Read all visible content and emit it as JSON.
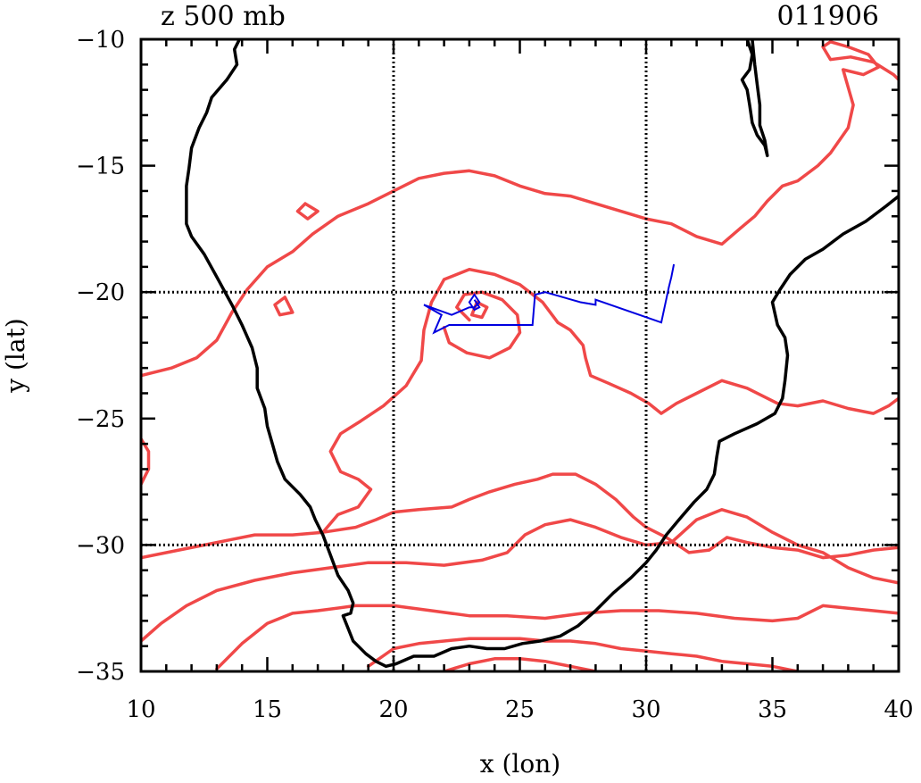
{
  "title_left": "z 500 mb",
  "title_right": "011906",
  "chart_data": {
    "type": "line",
    "xlabel": "x (lon)",
    "ylabel": "y (lat)",
    "xlim": [
      10,
      40
    ],
    "ylim": [
      -35,
      -10
    ],
    "xticks": [
      10,
      15,
      20,
      25,
      30,
      35,
      40
    ],
    "yticks": [
      -10,
      -15,
      -20,
      -25,
      -30,
      -35
    ],
    "xtick_labels": [
      "10",
      "15",
      "20",
      "25",
      "30",
      "35",
      "40"
    ],
    "ytick_labels": [
      "−10",
      "−15",
      "−20",
      "−25",
      "−30",
      "−35"
    ],
    "gridlines_x": [
      20,
      30
    ],
    "gridlines_y": [
      -20,
      -30
    ],
    "grid_style": "dotted",
    "colors": {
      "coast": "#000000",
      "contour": "#f04848",
      "track": "#0000e0",
      "grid": "#000000"
    },
    "coastline": [
      [
        [
          13.9,
          -10.0
        ],
        [
          13.7,
          -10.4
        ],
        [
          13.8,
          -11.0
        ],
        [
          13.4,
          -11.6
        ],
        [
          12.8,
          -12.3
        ],
        [
          12.6,
          -12.9
        ],
        [
          12.3,
          -13.5
        ],
        [
          12.0,
          -14.3
        ],
        [
          11.9,
          -15.1
        ],
        [
          11.8,
          -15.8
        ],
        [
          11.8,
          -16.6
        ],
        [
          11.8,
          -17.3
        ],
        [
          12.0,
          -17.8
        ],
        [
          12.5,
          -18.5
        ],
        [
          13.0,
          -19.4
        ],
        [
          13.6,
          -20.5
        ],
        [
          14.0,
          -21.3
        ],
        [
          14.4,
          -22.2
        ],
        [
          14.6,
          -23.0
        ],
        [
          14.6,
          -23.8
        ],
        [
          14.9,
          -24.6
        ],
        [
          15.0,
          -25.3
        ],
        [
          15.2,
          -26.0
        ],
        [
          15.4,
          -26.7
        ],
        [
          15.7,
          -27.4
        ],
        [
          16.3,
          -28.0
        ],
        [
          16.7,
          -28.5
        ],
        [
          16.9,
          -29.0
        ],
        [
          17.2,
          -29.6
        ],
        [
          17.5,
          -30.4
        ],
        [
          17.8,
          -31.2
        ],
        [
          18.2,
          -31.8
        ],
        [
          18.4,
          -32.3
        ],
        [
          18.3,
          -32.7
        ],
        [
          18.0,
          -32.8
        ],
        [
          18.2,
          -33.3
        ],
        [
          18.4,
          -33.8
        ],
        [
          18.6,
          -34.0
        ],
        [
          18.9,
          -34.3
        ],
        [
          19.3,
          -34.6
        ],
        [
          19.7,
          -34.8
        ],
        [
          20.1,
          -34.7
        ],
        [
          20.8,
          -34.4
        ],
        [
          21.6,
          -34.4
        ],
        [
          22.3,
          -34.1
        ],
        [
          23.0,
          -34.0
        ],
        [
          23.7,
          -34.1
        ],
        [
          24.4,
          -34.1
        ],
        [
          25.1,
          -33.9
        ],
        [
          25.8,
          -33.8
        ],
        [
          26.6,
          -33.6
        ],
        [
          27.3,
          -33.2
        ],
        [
          28.0,
          -32.6
        ],
        [
          28.7,
          -31.9
        ],
        [
          29.4,
          -31.3
        ],
        [
          30.0,
          -30.7
        ],
        [
          30.4,
          -30.2
        ],
        [
          30.8,
          -29.6
        ],
        [
          31.3,
          -29.0
        ],
        [
          31.9,
          -28.3
        ],
        [
          32.4,
          -27.8
        ],
        [
          32.7,
          -27.2
        ],
        [
          32.8,
          -26.5
        ],
        [
          32.9,
          -25.9
        ],
        [
          33.5,
          -25.6
        ],
        [
          34.4,
          -25.2
        ],
        [
          35.1,
          -24.8
        ],
        [
          35.4,
          -24.2
        ],
        [
          35.5,
          -23.5
        ],
        [
          35.6,
          -22.5
        ],
        [
          35.5,
          -21.8
        ],
        [
          35.2,
          -21.3
        ],
        [
          35.0,
          -20.4
        ],
        [
          35.3,
          -19.9
        ],
        [
          35.7,
          -19.3
        ],
        [
          36.3,
          -18.7
        ],
        [
          37.0,
          -18.3
        ],
        [
          37.8,
          -17.7
        ],
        [
          38.7,
          -17.2
        ],
        [
          39.5,
          -16.6
        ],
        [
          40.0,
          -16.2
        ]
      ],
      [
        [
          34.0,
          -10.0
        ],
        [
          34.2,
          -10.6
        ],
        [
          34.1,
          -11.2
        ],
        [
          33.8,
          -11.6
        ],
        [
          34.0,
          -12.0
        ],
        [
          34.1,
          -12.6
        ],
        [
          34.2,
          -13.3
        ],
        [
          34.4,
          -13.8
        ],
        [
          34.7,
          -14.2
        ],
        [
          34.8,
          -14.6
        ],
        [
          34.7,
          -14.0
        ],
        [
          34.5,
          -13.4
        ],
        [
          34.5,
          -12.6
        ],
        [
          34.4,
          -11.8
        ],
        [
          34.3,
          -11.0
        ],
        [
          34.2,
          -10.0
        ]
      ]
    ],
    "contours": [
      [
        [
          10.0,
          -23.3
        ],
        [
          11.2,
          -23.0
        ],
        [
          12.2,
          -22.6
        ],
        [
          13.0,
          -21.9
        ],
        [
          13.6,
          -20.8
        ],
        [
          14.2,
          -19.9
        ],
        [
          15.0,
          -19.0
        ],
        [
          16.0,
          -18.4
        ],
        [
          16.8,
          -17.7
        ],
        [
          17.8,
          -17.0
        ],
        [
          19.0,
          -16.5
        ],
        [
          20.0,
          -16.0
        ],
        [
          21.0,
          -15.5
        ],
        [
          22.0,
          -15.3
        ],
        [
          23.0,
          -15.2
        ],
        [
          24.0,
          -15.4
        ],
        [
          25.0,
          -15.8
        ],
        [
          26.0,
          -16.1
        ],
        [
          27.0,
          -16.2
        ],
        [
          28.0,
          -16.5
        ],
        [
          29.0,
          -16.8
        ],
        [
          30.0,
          -17.1
        ],
        [
          31.0,
          -17.3
        ],
        [
          32.0,
          -17.8
        ],
        [
          33.0,
          -18.1
        ],
        [
          33.7,
          -17.5
        ],
        [
          34.3,
          -17.0
        ],
        [
          34.8,
          -16.4
        ],
        [
          35.4,
          -15.8
        ],
        [
          36.0,
          -15.6
        ],
        [
          36.8,
          -15.0
        ],
        [
          37.3,
          -14.5
        ],
        [
          38.0,
          -13.5
        ],
        [
          38.2,
          -12.6
        ],
        [
          38.0,
          -11.9
        ],
        [
          37.8,
          -11.2
        ],
        [
          38.6,
          -11.4
        ],
        [
          39.2,
          -11.1
        ],
        [
          38.8,
          -10.6
        ],
        [
          38.0,
          -10.3
        ],
        [
          37.3,
          -10.1
        ],
        [
          37.0,
          -10.3
        ],
        [
          37.3,
          -10.8
        ],
        [
          38.1,
          -10.7
        ],
        [
          39.0,
          -10.9
        ],
        [
          39.8,
          -11.4
        ],
        [
          40.0,
          -11.6
        ]
      ],
      [
        [
          16.5,
          -16.5
        ],
        [
          17.0,
          -16.8
        ],
        [
          16.6,
          -17.1
        ],
        [
          16.2,
          -16.8
        ],
        [
          16.5,
          -16.5
        ]
      ],
      [
        [
          15.7,
          -20.2
        ],
        [
          16.0,
          -20.8
        ],
        [
          15.5,
          -20.9
        ],
        [
          15.3,
          -20.5
        ],
        [
          15.7,
          -20.2
        ]
      ],
      [
        [
          10.0,
          -25.8
        ],
        [
          10.3,
          -26.3
        ],
        [
          10.3,
          -27.0
        ],
        [
          10.0,
          -27.6
        ]
      ],
      [
        [
          17.2,
          -29.5
        ],
        [
          17.8,
          -28.8
        ],
        [
          18.6,
          -28.5
        ],
        [
          19.1,
          -27.8
        ],
        [
          18.6,
          -27.4
        ],
        [
          17.9,
          -27.1
        ],
        [
          17.5,
          -26.3
        ],
        [
          17.9,
          -25.6
        ],
        [
          18.7,
          -25.1
        ],
        [
          19.6,
          -24.5
        ],
        [
          20.5,
          -23.7
        ],
        [
          21.1,
          -22.7
        ],
        [
          21.2,
          -21.5
        ],
        [
          21.5,
          -20.4
        ],
        [
          22.0,
          -19.5
        ],
        [
          23.0,
          -19.1
        ],
        [
          24.0,
          -19.3
        ],
        [
          25.0,
          -19.7
        ],
        [
          25.9,
          -20.4
        ],
        [
          26.5,
          -21.2
        ],
        [
          27.0,
          -21.5
        ],
        [
          27.5,
          -22.1
        ],
        [
          27.6,
          -22.6
        ],
        [
          27.8,
          -23.3
        ],
        [
          28.5,
          -23.6
        ],
        [
          29.4,
          -24.0
        ],
        [
          30.1,
          -24.4
        ],
        [
          30.6,
          -24.8
        ],
        [
          31.2,
          -24.4
        ],
        [
          32.0,
          -24.0
        ],
        [
          33.0,
          -23.5
        ],
        [
          34.0,
          -23.8
        ],
        [
          35.2,
          -24.4
        ],
        [
          36.0,
          -24.5
        ],
        [
          37.0,
          -24.3
        ],
        [
          38.0,
          -24.6
        ],
        [
          39.0,
          -24.8
        ],
        [
          39.6,
          -24.5
        ],
        [
          40.0,
          -24.2
        ]
      ],
      [
        [
          23.0,
          -21.1
        ],
        [
          22.5,
          -20.6
        ],
        [
          22.8,
          -20.1
        ],
        [
          23.5,
          -20.0
        ],
        [
          24.3,
          -20.3
        ],
        [
          24.9,
          -20.9
        ],
        [
          25.0,
          -21.6
        ],
        [
          24.6,
          -22.2
        ],
        [
          23.8,
          -22.6
        ],
        [
          22.9,
          -22.4
        ],
        [
          22.2,
          -22.0
        ],
        [
          22.0,
          -21.4
        ]
      ],
      [
        [
          23.3,
          -20.4
        ],
        [
          23.7,
          -20.6
        ],
        [
          23.5,
          -21.0
        ],
        [
          23.1,
          -20.9
        ],
        [
          23.3,
          -20.4
        ]
      ],
      [
        [
          10.0,
          -30.5
        ],
        [
          11.5,
          -30.2
        ],
        [
          13.0,
          -29.9
        ],
        [
          14.5,
          -29.6
        ],
        [
          16.0,
          -29.6
        ],
        [
          17.2,
          -29.5
        ],
        [
          18.5,
          -29.3
        ],
        [
          19.3,
          -29.0
        ],
        [
          20.0,
          -28.7
        ],
        [
          21.0,
          -28.6
        ],
        [
          22.3,
          -28.5
        ],
        [
          23.0,
          -28.2
        ],
        [
          23.8,
          -27.9
        ],
        [
          24.8,
          -27.6
        ],
        [
          25.7,
          -27.4
        ],
        [
          26.3,
          -27.2
        ],
        [
          27.2,
          -27.2
        ],
        [
          28.0,
          -27.6
        ],
        [
          28.8,
          -28.2
        ],
        [
          29.5,
          -28.9
        ],
        [
          30.0,
          -29.3
        ],
        [
          30.8,
          -29.7
        ],
        [
          31.7,
          -30.3
        ],
        [
          32.5,
          -30.2
        ],
        [
          33.2,
          -29.7
        ],
        [
          34.0,
          -29.9
        ],
        [
          35.0,
          -30.1
        ],
        [
          36.0,
          -30.2
        ],
        [
          37.0,
          -30.5
        ],
        [
          38.0,
          -30.4
        ],
        [
          39.0,
          -30.2
        ],
        [
          40.0,
          -30.1
        ]
      ],
      [
        [
          10.0,
          -33.8
        ],
        [
          10.8,
          -33.1
        ],
        [
          11.8,
          -32.4
        ],
        [
          13.0,
          -31.8
        ],
        [
          14.5,
          -31.4
        ],
        [
          16.0,
          -31.1
        ],
        [
          17.5,
          -30.9
        ],
        [
          19.0,
          -30.7
        ],
        [
          20.5,
          -30.7
        ],
        [
          22.0,
          -30.8
        ],
        [
          23.5,
          -30.6
        ],
        [
          24.5,
          -30.3
        ],
        [
          25.2,
          -29.6
        ],
        [
          26.0,
          -29.2
        ],
        [
          27.0,
          -29.0
        ],
        [
          28.0,
          -29.3
        ],
        [
          29.0,
          -29.7
        ],
        [
          30.0,
          -30.0
        ],
        [
          31.0,
          -29.9
        ],
        [
          32.0,
          -29.0
        ],
        [
          33.0,
          -28.6
        ],
        [
          34.0,
          -28.9
        ],
        [
          35.0,
          -29.5
        ],
        [
          36.0,
          -30.0
        ],
        [
          37.0,
          -30.3
        ],
        [
          38.0,
          -30.9
        ],
        [
          39.0,
          -31.3
        ],
        [
          40.0,
          -31.5
        ]
      ],
      [
        [
          13.0,
          -34.9
        ],
        [
          14.0,
          -33.9
        ],
        [
          15.0,
          -33.1
        ],
        [
          16.0,
          -32.7
        ],
        [
          17.0,
          -32.6
        ],
        [
          18.5,
          -32.4
        ],
        [
          20.0,
          -32.4
        ],
        [
          21.5,
          -32.6
        ],
        [
          23.0,
          -32.8
        ],
        [
          24.5,
          -32.8
        ],
        [
          26.0,
          -32.9
        ],
        [
          27.5,
          -32.7
        ],
        [
          29.0,
          -32.6
        ],
        [
          30.5,
          -32.6
        ],
        [
          32.0,
          -32.7
        ],
        [
          33.5,
          -32.9
        ],
        [
          35.0,
          -33.0
        ],
        [
          36.0,
          -32.9
        ],
        [
          37.0,
          -32.4
        ],
        [
          38.0,
          -32.5
        ],
        [
          39.0,
          -32.6
        ],
        [
          40.0,
          -32.7
        ]
      ],
      [
        [
          19.0,
          -34.8
        ],
        [
          20.0,
          -34.1
        ],
        [
          21.0,
          -33.9
        ],
        [
          22.0,
          -33.8
        ],
        [
          23.0,
          -33.7
        ],
        [
          24.0,
          -33.7
        ],
        [
          25.0,
          -33.7
        ],
        [
          26.0,
          -33.8
        ],
        [
          27.0,
          -33.8
        ],
        [
          28.0,
          -33.9
        ],
        [
          29.0,
          -34.1
        ],
        [
          30.0,
          -34.2
        ],
        [
          31.0,
          -34.3
        ],
        [
          32.0,
          -34.4
        ],
        [
          33.0,
          -34.6
        ],
        [
          34.0,
          -34.7
        ],
        [
          35.0,
          -34.8
        ],
        [
          36.0,
          -35.0
        ]
      ],
      [
        [
          22.0,
          -35.0
        ],
        [
          23.0,
          -34.7
        ],
        [
          24.0,
          -34.5
        ],
        [
          25.0,
          -34.5
        ],
        [
          26.0,
          -34.6
        ],
        [
          27.0,
          -34.8
        ],
        [
          28.0,
          -35.0
        ]
      ]
    ],
    "track": [
      [
        31.1,
        -18.9
      ],
      [
        31.0,
        -19.4
      ],
      [
        30.9,
        -19.8
      ],
      [
        30.6,
        -21.2
      ],
      [
        28.0,
        -20.3
      ],
      [
        28.0,
        -20.5
      ],
      [
        27.4,
        -20.4
      ],
      [
        26.0,
        -20.0
      ],
      [
        25.6,
        -20.1
      ],
      [
        25.5,
        -21.3
      ],
      [
        23.4,
        -21.3
      ],
      [
        22.2,
        -21.3
      ],
      [
        21.6,
        -21.6
      ],
      [
        21.9,
        -20.9
      ],
      [
        21.2,
        -20.5
      ],
      [
        22.3,
        -20.9
      ],
      [
        23.0,
        -20.6
      ],
      [
        23.2,
        -20.6
      ],
      [
        23.4,
        -20.4
      ],
      [
        23.2,
        -20.1
      ],
      [
        23.0,
        -20.4
      ],
      [
        23.2,
        -20.7
      ],
      [
        23.4,
        -20.6
      ],
      [
        23.2,
        -20.3
      ]
    ]
  }
}
